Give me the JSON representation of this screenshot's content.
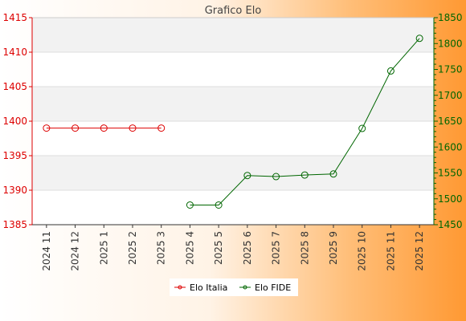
{
  "chart_data": {
    "type": "line",
    "title": "Grafico Elo",
    "categories": [
      "2024 11",
      "2024 12",
      "2025 1",
      "2025 2",
      "2025 3",
      "2025 4",
      "2025 5",
      "2025 6",
      "2025 7",
      "2025 8",
      "2025 9",
      "2025 10",
      "2025 11",
      "2025 12"
    ],
    "series": [
      {
        "name": "Elo Italia",
        "axis": "left",
        "color": "#dd0000",
        "values": [
          1399,
          1399,
          1399,
          1399,
          1399,
          null,
          null,
          null,
          null,
          null,
          null,
          null,
          null,
          null
        ]
      },
      {
        "name": "Elo FIDE",
        "axis": "right",
        "color": "#006600",
        "values": [
          null,
          null,
          null,
          null,
          null,
          1488,
          1488,
          1545,
          1543,
          1546,
          1548,
          1636,
          1747,
          1810
        ]
      }
    ],
    "y_left": {
      "range": [
        1385,
        1415
      ],
      "ticks": [
        1385,
        1390,
        1395,
        1400,
        1405,
        1410,
        1415
      ],
      "color": "#dd0000"
    },
    "y_right": {
      "range": [
        1450,
        1850
      ],
      "ticks": [
        1450,
        1500,
        1550,
        1600,
        1650,
        1700,
        1750,
        1800,
        1850
      ],
      "color": "#006600"
    },
    "grid": true,
    "legend": "bottom",
    "colors": {
      "bg_left": "#ffffff",
      "bg_right": "#ff9933",
      "band": "#f2f2f2",
      "tick_text": "#333333"
    }
  }
}
